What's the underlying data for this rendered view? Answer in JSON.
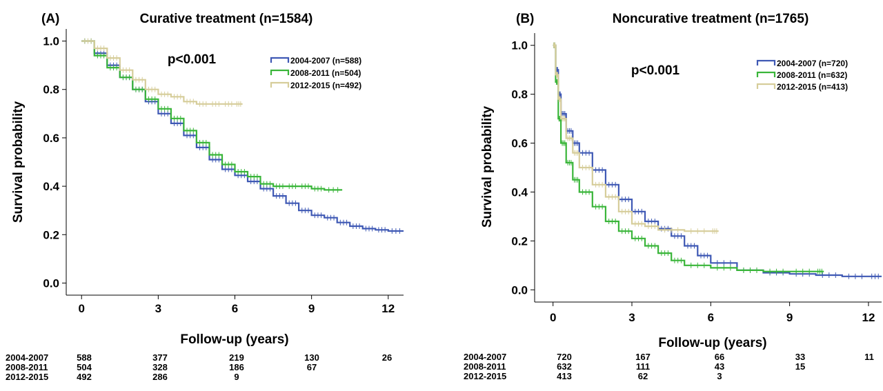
{
  "panels": [
    {
      "label": "(A)",
      "title": "Curative treatment (n=1584)",
      "xlabel": "Follow-up (years)",
      "ylabel": "Survival probability",
      "pvalue": "p<0.001",
      "risk_table": [
        {
          "label": "2004-2007",
          "values": [
            "588",
            "377",
            "219",
            "130",
            "26"
          ]
        },
        {
          "label": "2008-2011",
          "values": [
            "504",
            "328",
            "186",
            "67"
          ]
        },
        {
          "label": "2012-2015",
          "values": [
            "492",
            "286",
            "9"
          ]
        }
      ]
    },
    {
      "label": "(B)",
      "title": "Noncurative treatment (n=1765)",
      "xlabel": "Follow-up (years)",
      "ylabel": "Survival probability",
      "pvalue": "p<0.001",
      "risk_table": [
        {
          "label": "2004-2007",
          "values": [
            "720",
            "167",
            "66",
            "33",
            "11"
          ]
        },
        {
          "label": "2008-2011",
          "values": [
            "632",
            "111",
            "43",
            "15"
          ]
        },
        {
          "label": "2012-2015",
          "values": [
            "413",
            "62",
            "3"
          ]
        }
      ]
    }
  ],
  "chart_data": [
    {
      "type": "line",
      "title": "Curative treatment (n=1584)",
      "xlabel": "Follow-up (years)",
      "ylabel": "Survival probability",
      "xlim": [
        -0.6,
        12.6
      ],
      "ylim": [
        -0.05,
        1.05
      ],
      "xticks": [
        0,
        3,
        6,
        9,
        12
      ],
      "yticks": [
        0.0,
        0.2,
        0.4,
        0.6,
        0.8,
        1.0
      ],
      "legend_position": "top-right",
      "series": [
        {
          "name": "2004-2007 (n=588)",
          "color": "#3e58b4",
          "x": [
            0,
            0.5,
            1,
            1.5,
            2,
            2.5,
            3,
            3.5,
            4,
            4.5,
            5,
            5.5,
            6,
            6.5,
            7,
            7.5,
            8,
            8.5,
            9,
            9.5,
            10,
            10.5,
            11,
            11.5,
            12,
            12.6
          ],
          "y": [
            1.0,
            0.95,
            0.9,
            0.85,
            0.8,
            0.75,
            0.7,
            0.66,
            0.61,
            0.56,
            0.51,
            0.47,
            0.445,
            0.42,
            0.39,
            0.36,
            0.33,
            0.3,
            0.28,
            0.27,
            0.25,
            0.235,
            0.225,
            0.22,
            0.215,
            0.215
          ]
        },
        {
          "name": "2008-2011 (n=504)",
          "color": "#39b539",
          "x": [
            0,
            0.5,
            1,
            1.5,
            2,
            2.5,
            3,
            3.5,
            4,
            4.5,
            5,
            5.5,
            6,
            6.5,
            7,
            7.5,
            8,
            8.5,
            9,
            9.5,
            10.2
          ],
          "y": [
            1.0,
            0.94,
            0.89,
            0.85,
            0.8,
            0.76,
            0.72,
            0.68,
            0.63,
            0.58,
            0.53,
            0.49,
            0.46,
            0.44,
            0.41,
            0.4,
            0.4,
            0.4,
            0.39,
            0.385,
            0.385
          ]
        },
        {
          "name": "2012-2015 (n=492)",
          "color": "#d6cd9a",
          "x": [
            0,
            0.5,
            1,
            1.5,
            2,
            2.5,
            3,
            3.5,
            4,
            4.5,
            5,
            5.5,
            6,
            6.3
          ],
          "y": [
            1.0,
            0.97,
            0.93,
            0.88,
            0.84,
            0.8,
            0.78,
            0.77,
            0.75,
            0.74,
            0.74,
            0.74,
            0.74,
            0.74
          ]
        }
      ]
    },
    {
      "type": "line",
      "title": "Noncurative treatment (n=1765)",
      "xlabel": "Follow-up (years)",
      "ylabel": "Survival probability",
      "xlim": [
        -0.7,
        12.5
      ],
      "ylim": [
        -0.05,
        1.05
      ],
      "xticks": [
        0,
        3,
        6,
        9,
        12
      ],
      "yticks": [
        0.0,
        0.2,
        0.4,
        0.6,
        0.8,
        1.0
      ],
      "legend_position": "top-right",
      "series": [
        {
          "name": "2004-2007 (n=720)",
          "color": "#3e58b4",
          "x": [
            0,
            0.1,
            0.2,
            0.3,
            0.5,
            0.75,
            1,
            1.5,
            2,
            2.5,
            3,
            3.5,
            4,
            4.5,
            5,
            5.5,
            6,
            7,
            8,
            9,
            10,
            11,
            12,
            12.5
          ],
          "y": [
            1.0,
            0.9,
            0.8,
            0.72,
            0.65,
            0.6,
            0.56,
            0.49,
            0.43,
            0.37,
            0.32,
            0.28,
            0.25,
            0.22,
            0.18,
            0.14,
            0.11,
            0.08,
            0.07,
            0.065,
            0.06,
            0.055,
            0.055,
            0.055
          ]
        },
        {
          "name": "2008-2011 (n=632)",
          "color": "#39b539",
          "x": [
            0,
            0.1,
            0.2,
            0.3,
            0.5,
            0.75,
            1,
            1.5,
            2,
            2.5,
            3,
            3.5,
            4,
            4.5,
            5,
            6,
            7,
            8,
            9,
            10,
            10.3
          ],
          "y": [
            1.0,
            0.85,
            0.7,
            0.6,
            0.52,
            0.45,
            0.4,
            0.34,
            0.28,
            0.24,
            0.21,
            0.18,
            0.15,
            0.12,
            0.1,
            0.09,
            0.08,
            0.075,
            0.075,
            0.075,
            0.075
          ]
        },
        {
          "name": "2012-2015 (n=413)",
          "color": "#d6cd9a",
          "x": [
            0,
            0.1,
            0.2,
            0.3,
            0.5,
            0.75,
            1,
            1.5,
            2,
            2.5,
            3,
            3.5,
            4,
            5,
            6,
            6.3
          ],
          "y": [
            1.0,
            0.88,
            0.78,
            0.7,
            0.62,
            0.56,
            0.5,
            0.43,
            0.38,
            0.32,
            0.27,
            0.26,
            0.245,
            0.24,
            0.24,
            0.24
          ]
        }
      ]
    }
  ]
}
